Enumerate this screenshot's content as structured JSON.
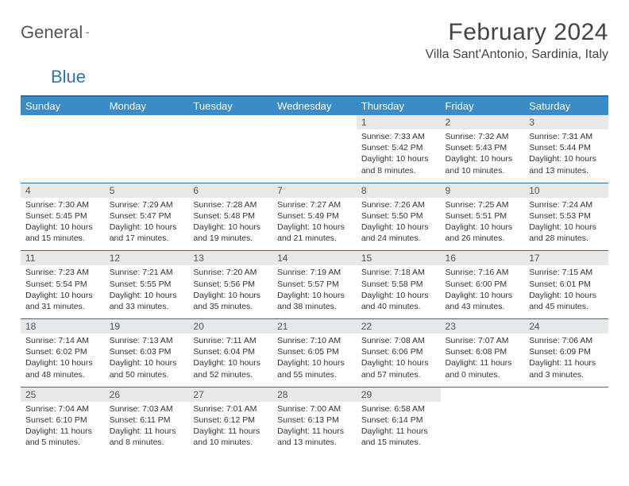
{
  "logo": {
    "text_general": "General",
    "text_blue": "Blue"
  },
  "title": "February 2024",
  "location": "Villa Sant'Antonio, Sardinia, Italy",
  "colors": {
    "header_bg": "#3b8bc6",
    "header_border": "#2e6da4",
    "daynum_bg": "#e8e8e8",
    "text": "#333333",
    "logo_gray": "#555555",
    "logo_blue": "#2e75b6"
  },
  "day_headers": [
    "Sunday",
    "Monday",
    "Tuesday",
    "Wednesday",
    "Thursday",
    "Friday",
    "Saturday"
  ],
  "weeks": [
    [
      {
        "blank": true
      },
      {
        "blank": true
      },
      {
        "blank": true
      },
      {
        "blank": true
      },
      {
        "day": "1",
        "sunrise": "Sunrise: 7:33 AM",
        "sunset": "Sunset: 5:42 PM",
        "daylight": "Daylight: 10 hours and 8 minutes."
      },
      {
        "day": "2",
        "sunrise": "Sunrise: 7:32 AM",
        "sunset": "Sunset: 5:43 PM",
        "daylight": "Daylight: 10 hours and 10 minutes."
      },
      {
        "day": "3",
        "sunrise": "Sunrise: 7:31 AM",
        "sunset": "Sunset: 5:44 PM",
        "daylight": "Daylight: 10 hours and 13 minutes."
      }
    ],
    [
      {
        "day": "4",
        "sunrise": "Sunrise: 7:30 AM",
        "sunset": "Sunset: 5:45 PM",
        "daylight": "Daylight: 10 hours and 15 minutes."
      },
      {
        "day": "5",
        "sunrise": "Sunrise: 7:29 AM",
        "sunset": "Sunset: 5:47 PM",
        "daylight": "Daylight: 10 hours and 17 minutes."
      },
      {
        "day": "6",
        "sunrise": "Sunrise: 7:28 AM",
        "sunset": "Sunset: 5:48 PM",
        "daylight": "Daylight: 10 hours and 19 minutes."
      },
      {
        "day": "7",
        "sunrise": "Sunrise: 7:27 AM",
        "sunset": "Sunset: 5:49 PM",
        "daylight": "Daylight: 10 hours and 21 minutes."
      },
      {
        "day": "8",
        "sunrise": "Sunrise: 7:26 AM",
        "sunset": "Sunset: 5:50 PM",
        "daylight": "Daylight: 10 hours and 24 minutes."
      },
      {
        "day": "9",
        "sunrise": "Sunrise: 7:25 AM",
        "sunset": "Sunset: 5:51 PM",
        "daylight": "Daylight: 10 hours and 26 minutes."
      },
      {
        "day": "10",
        "sunrise": "Sunrise: 7:24 AM",
        "sunset": "Sunset: 5:53 PM",
        "daylight": "Daylight: 10 hours and 28 minutes."
      }
    ],
    [
      {
        "day": "11",
        "sunrise": "Sunrise: 7:23 AM",
        "sunset": "Sunset: 5:54 PM",
        "daylight": "Daylight: 10 hours and 31 minutes."
      },
      {
        "day": "12",
        "sunrise": "Sunrise: 7:21 AM",
        "sunset": "Sunset: 5:55 PM",
        "daylight": "Daylight: 10 hours and 33 minutes."
      },
      {
        "day": "13",
        "sunrise": "Sunrise: 7:20 AM",
        "sunset": "Sunset: 5:56 PM",
        "daylight": "Daylight: 10 hours and 35 minutes."
      },
      {
        "day": "14",
        "sunrise": "Sunrise: 7:19 AM",
        "sunset": "Sunset: 5:57 PM",
        "daylight": "Daylight: 10 hours and 38 minutes."
      },
      {
        "day": "15",
        "sunrise": "Sunrise: 7:18 AM",
        "sunset": "Sunset: 5:58 PM",
        "daylight": "Daylight: 10 hours and 40 minutes."
      },
      {
        "day": "16",
        "sunrise": "Sunrise: 7:16 AM",
        "sunset": "Sunset: 6:00 PM",
        "daylight": "Daylight: 10 hours and 43 minutes."
      },
      {
        "day": "17",
        "sunrise": "Sunrise: 7:15 AM",
        "sunset": "Sunset: 6:01 PM",
        "daylight": "Daylight: 10 hours and 45 minutes."
      }
    ],
    [
      {
        "day": "18",
        "sunrise": "Sunrise: 7:14 AM",
        "sunset": "Sunset: 6:02 PM",
        "daylight": "Daylight: 10 hours and 48 minutes."
      },
      {
        "day": "19",
        "sunrise": "Sunrise: 7:13 AM",
        "sunset": "Sunset: 6:03 PM",
        "daylight": "Daylight: 10 hours and 50 minutes."
      },
      {
        "day": "20",
        "sunrise": "Sunrise: 7:11 AM",
        "sunset": "Sunset: 6:04 PM",
        "daylight": "Daylight: 10 hours and 52 minutes."
      },
      {
        "day": "21",
        "sunrise": "Sunrise: 7:10 AM",
        "sunset": "Sunset: 6:05 PM",
        "daylight": "Daylight: 10 hours and 55 minutes."
      },
      {
        "day": "22",
        "sunrise": "Sunrise: 7:08 AM",
        "sunset": "Sunset: 6:06 PM",
        "daylight": "Daylight: 10 hours and 57 minutes."
      },
      {
        "day": "23",
        "sunrise": "Sunrise: 7:07 AM",
        "sunset": "Sunset: 6:08 PM",
        "daylight": "Daylight: 11 hours and 0 minutes."
      },
      {
        "day": "24",
        "sunrise": "Sunrise: 7:06 AM",
        "sunset": "Sunset: 6:09 PM",
        "daylight": "Daylight: 11 hours and 3 minutes."
      }
    ],
    [
      {
        "day": "25",
        "sunrise": "Sunrise: 7:04 AM",
        "sunset": "Sunset: 6:10 PM",
        "daylight": "Daylight: 11 hours and 5 minutes."
      },
      {
        "day": "26",
        "sunrise": "Sunrise: 7:03 AM",
        "sunset": "Sunset: 6:11 PM",
        "daylight": "Daylight: 11 hours and 8 minutes."
      },
      {
        "day": "27",
        "sunrise": "Sunrise: 7:01 AM",
        "sunset": "Sunset: 6:12 PM",
        "daylight": "Daylight: 11 hours and 10 minutes."
      },
      {
        "day": "28",
        "sunrise": "Sunrise: 7:00 AM",
        "sunset": "Sunset: 6:13 PM",
        "daylight": "Daylight: 11 hours and 13 minutes."
      },
      {
        "day": "29",
        "sunrise": "Sunrise: 6:58 AM",
        "sunset": "Sunset: 6:14 PM",
        "daylight": "Daylight: 11 hours and 15 minutes."
      },
      {
        "blank": true
      },
      {
        "blank": true
      }
    ]
  ]
}
